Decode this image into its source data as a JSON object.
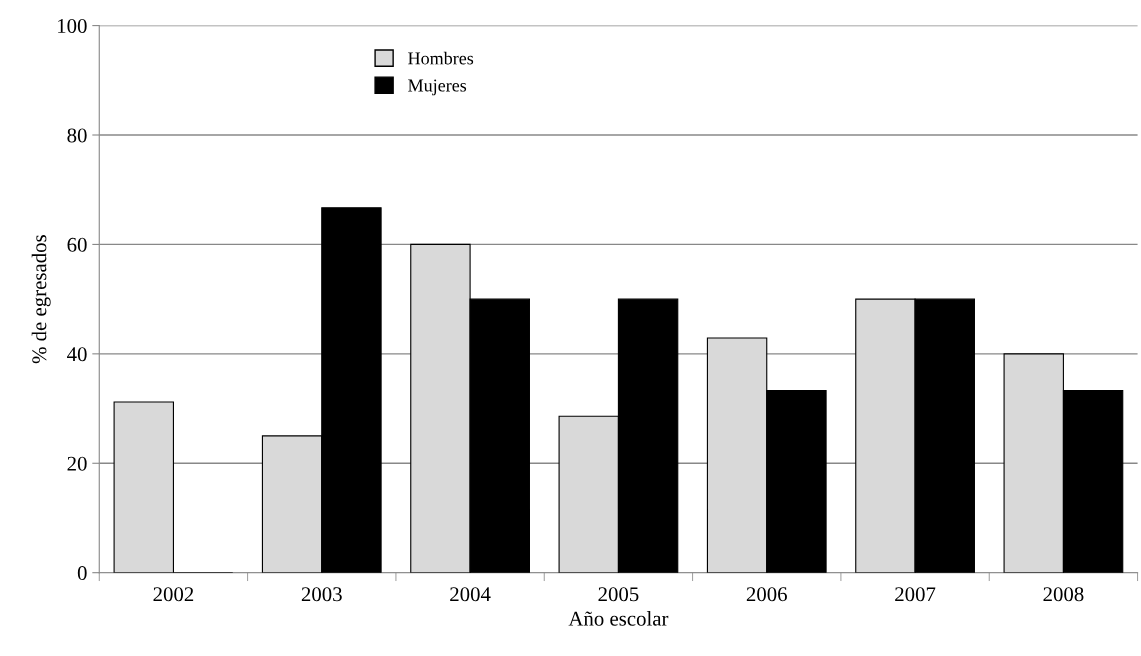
{
  "chart_data": {
    "type": "bar",
    "xlabel": "Año escolar",
    "ylabel": "% de egresados",
    "categories": [
      "2002",
      "2003",
      "2004",
      "2005",
      "2006",
      "2007",
      "2008"
    ],
    "series": [
      {
        "name": "Hombres",
        "color": "#d9d9d9",
        "values": [
          31.2,
          25,
          60,
          28.6,
          42.9,
          50,
          40
        ]
      },
      {
        "name": "Mujeres",
        "color": "#000000",
        "values": [
          0,
          66.7,
          50,
          50,
          33.3,
          50,
          33.3
        ]
      }
    ],
    "ylim": [
      0,
      100
    ],
    "yticks": [
      0,
      20,
      40,
      60,
      80,
      100
    ],
    "grid": "y",
    "legend": "top left"
  }
}
